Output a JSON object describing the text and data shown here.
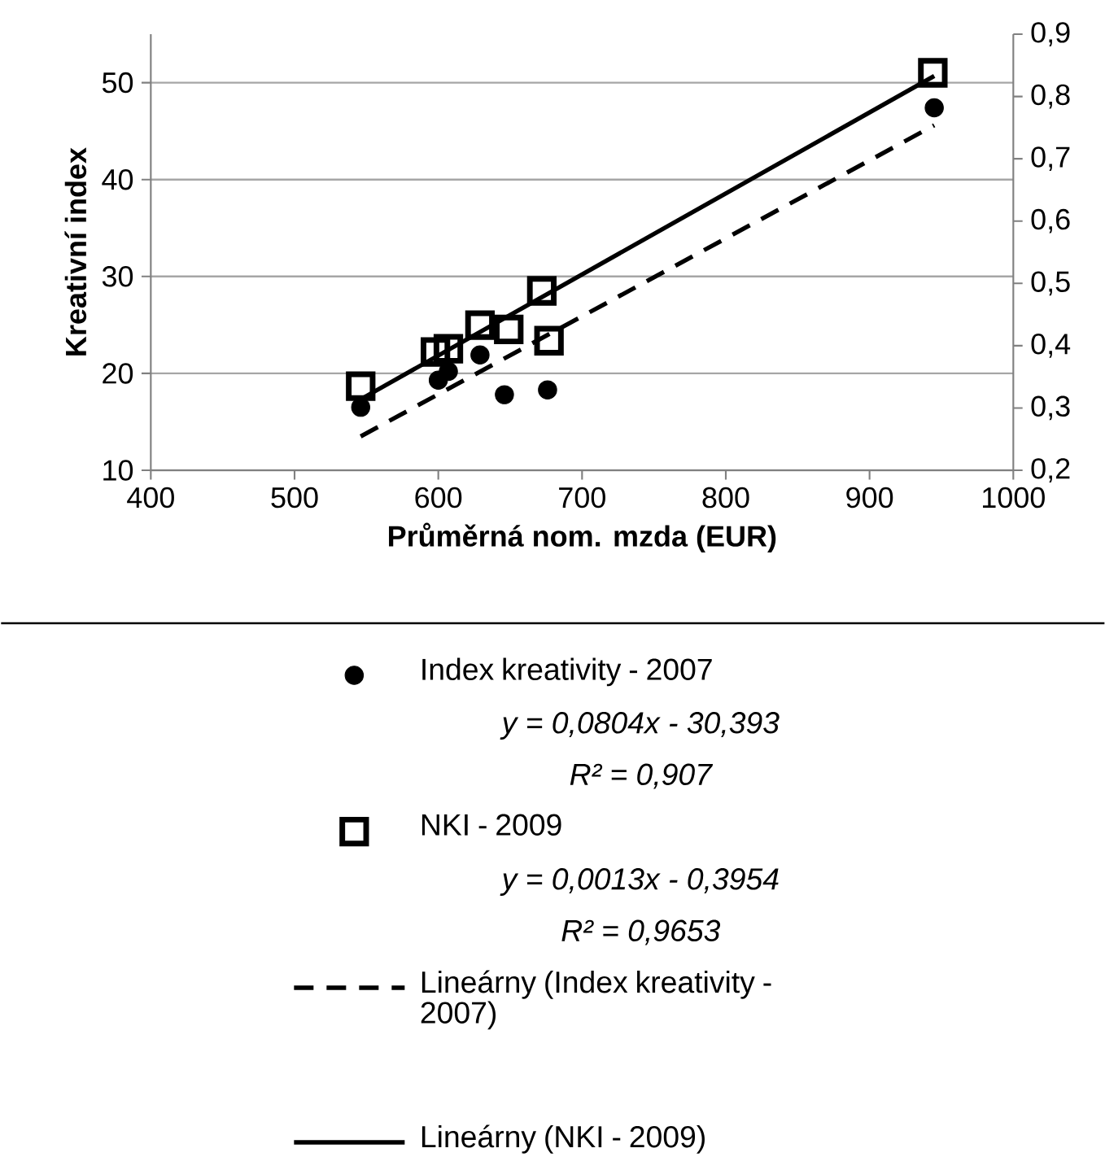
{
  "chart_data": {
    "type": "scatter",
    "xlabel": "Průměrná nom. mzda (EUR)",
    "ylabel": "Kreativní index",
    "xlim": [
      400,
      1000
    ],
    "xticks": [
      400,
      500,
      600,
      700,
      800,
      900,
      1000
    ],
    "ylim": [
      10,
      55
    ],
    "yticks": [
      10,
      20,
      30,
      40,
      50
    ],
    "y2lim": [
      0.2,
      0.9
    ],
    "y2ticks": [
      {
        "value": 0.2,
        "label": "0,2"
      },
      {
        "value": 0.3,
        "label": "0,3"
      },
      {
        "value": 0.4,
        "label": "0,4"
      },
      {
        "value": 0.5,
        "label": "0,5"
      },
      {
        "value": 0.6,
        "label": "0,6"
      },
      {
        "value": 0.7,
        "label": "0,7"
      },
      {
        "value": 0.8,
        "label": "0,8"
      },
      {
        "value": 0.9,
        "label": "0,9"
      }
    ],
    "grid": "y",
    "legend": "bottom",
    "series": [
      {
        "name": "Index kreativity - 2007",
        "type": "scatter",
        "marker": "circle",
        "color": "#000000",
        "x": [
          546,
          600,
          607,
          629,
          646,
          676,
          945
        ],
        "values": [
          16.5,
          19.3,
          20.2,
          21.9,
          17.8,
          18.3,
          47.4
        ]
      },
      {
        "name": "NKI - 2009",
        "type": "scatter",
        "marker": "square",
        "axis": "y2",
        "color": "#000000",
        "x": [
          546,
          598,
          607,
          629,
          649,
          672,
          677,
          944
        ],
        "values": [
          0.335,
          0.39,
          0.395,
          0.433,
          0.426,
          0.488,
          0.408,
          0.838
        ]
      },
      {
        "name": "Lineárny (Index kreativity - 2007)",
        "type": "line",
        "line_style": "dashed",
        "color": "#000000",
        "x": [
          546,
          945
        ],
        "values": [
          13.5,
          45.6
        ]
      },
      {
        "name": "Lineárny (NKI - 2009)",
        "type": "line",
        "line_style": "solid",
        "axis": "y2",
        "color": "#000000",
        "x": [
          546,
          945
        ],
        "values": [
          0.314,
          0.833
        ]
      }
    ],
    "annotations": [
      "y = 0,0804x - 30,393",
      "R² = 0,907",
      "y = 0,0013x - 0,3954",
      "R² = 0,9653"
    ]
  }
}
